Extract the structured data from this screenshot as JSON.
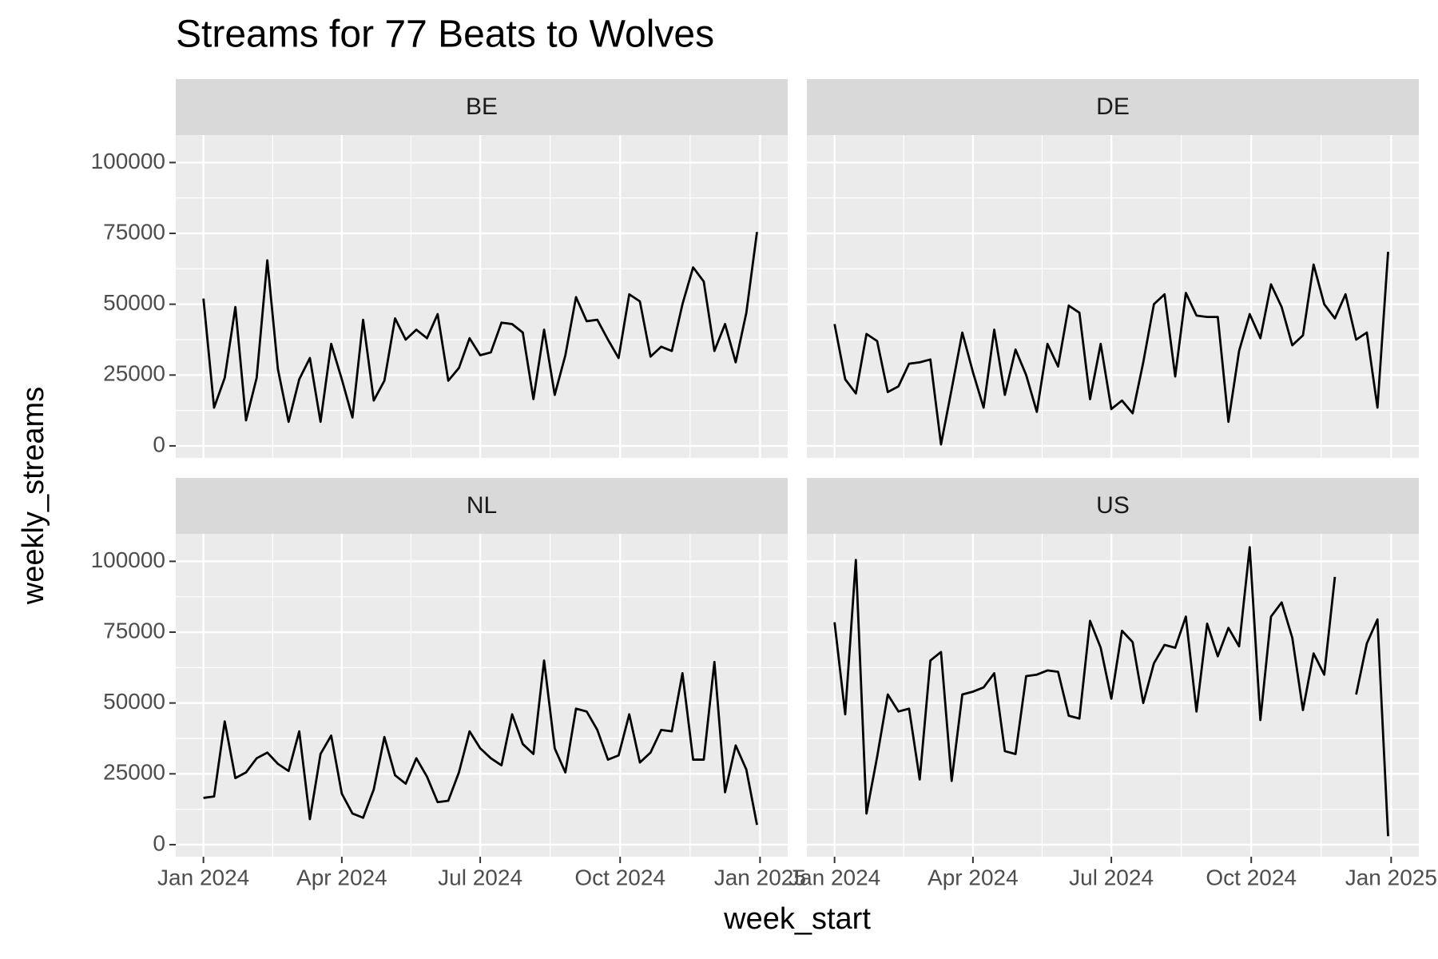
{
  "chart_data": {
    "type": "line",
    "title": "Streams for 77 Beats to Wolves",
    "x_label": "week_start",
    "y_label": "weekly_streams",
    "color": "#000000",
    "grid": true,
    "x": [
      0,
      7,
      14,
      21,
      28,
      35,
      42,
      49,
      56,
      63,
      70,
      77,
      84,
      91,
      98,
      105,
      112,
      119,
      126,
      133,
      140,
      147,
      154,
      161,
      168,
      175,
      182,
      189,
      196,
      203,
      210,
      217,
      224,
      231,
      238,
      245,
      252,
      259,
      266,
      273,
      280,
      287,
      294,
      301,
      308,
      315,
      322,
      329,
      336,
      343,
      350,
      357,
      364
    ],
    "xlim": [
      -18.2,
      384.2
    ],
    "xticks": [
      {
        "value": 0,
        "label": "Jan 2024"
      },
      {
        "value": 91,
        "label": "Apr 2024"
      },
      {
        "value": 182,
        "label": "Jul 2024"
      },
      {
        "value": 274,
        "label": "Oct 2024"
      },
      {
        "value": 366,
        "label": "Jan 2025"
      }
    ],
    "ylim": [
      -4250,
      109700
    ],
    "yticks": [
      0,
      25000,
      50000,
      75000,
      100000
    ],
    "panels": [
      {
        "name": "BE",
        "values": [
          52000,
          13500,
          24000,
          49000,
          9000,
          24000,
          65500,
          27000,
          8500,
          23500,
          31000,
          8500,
          36000,
          23500,
          10000,
          44500,
          16000,
          23000,
          45000,
          37500,
          41000,
          38000,
          46500,
          23000,
          27500,
          38000,
          32000,
          33000,
          43500,
          43000,
          40000,
          16500,
          41000,
          18000,
          32000,
          52500,
          44000,
          44500,
          37500,
          31000,
          53500,
          51000,
          31500,
          35000,
          33500,
          50000,
          63000,
          58000,
          33500,
          43000,
          29500,
          47000,
          75500
        ]
      },
      {
        "name": "DE",
        "values": [
          43000,
          23500,
          18500,
          39500,
          37000,
          19000,
          21000,
          29000,
          29500,
          30500,
          500,
          20000,
          40000,
          26000,
          13500,
          41000,
          18000,
          34000,
          25000,
          12000,
          36000,
          28000,
          49500,
          47000,
          16500,
          36000,
          13000,
          16000,
          11500,
          29500,
          50000,
          53500,
          24500,
          54000,
          46000,
          45500,
          45500,
          8500,
          33500,
          46500,
          38000,
          57000,
          49000,
          35500,
          39000,
          64000,
          50000,
          45000,
          53500,
          37500,
          40000,
          13500,
          68500
        ]
      },
      {
        "name": "NL",
        "values": [
          16500,
          17000,
          43500,
          23500,
          25500,
          30500,
          32500,
          28500,
          26000,
          40000,
          9000,
          32000,
          38500,
          18000,
          11000,
          9500,
          19500,
          38000,
          24500,
          21500,
          30500,
          24000,
          15000,
          15500,
          25500,
          40000,
          34000,
          30500,
          28000,
          46000,
          35500,
          32000,
          65000,
          34000,
          25500,
          48000,
          47000,
          40500,
          30000,
          31500,
          46000,
          29000,
          32500,
          40500,
          40000,
          60500,
          30000,
          30000,
          64500,
          18500,
          35000,
          26500,
          7000
        ]
      },
      {
        "name": "US",
        "values": [
          78500,
          46000,
          100500,
          11000,
          31000,
          53000,
          47000,
          48000,
          23000,
          65000,
          68000,
          22500,
          53000,
          54000,
          55500,
          60500,
          33000,
          32000,
          59500,
          60000,
          61500,
          61000,
          45500,
          44500,
          79000,
          69500,
          51500,
          75500,
          71500,
          50000,
          64000,
          70500,
          69500,
          80500,
          47000,
          78000,
          66500,
          76500,
          70000,
          105000,
          44000,
          80500,
          85500,
          73000,
          47500,
          67500,
          60000,
          94500,
          null,
          53000,
          71000,
          79500,
          3000
        ]
      }
    ]
  }
}
